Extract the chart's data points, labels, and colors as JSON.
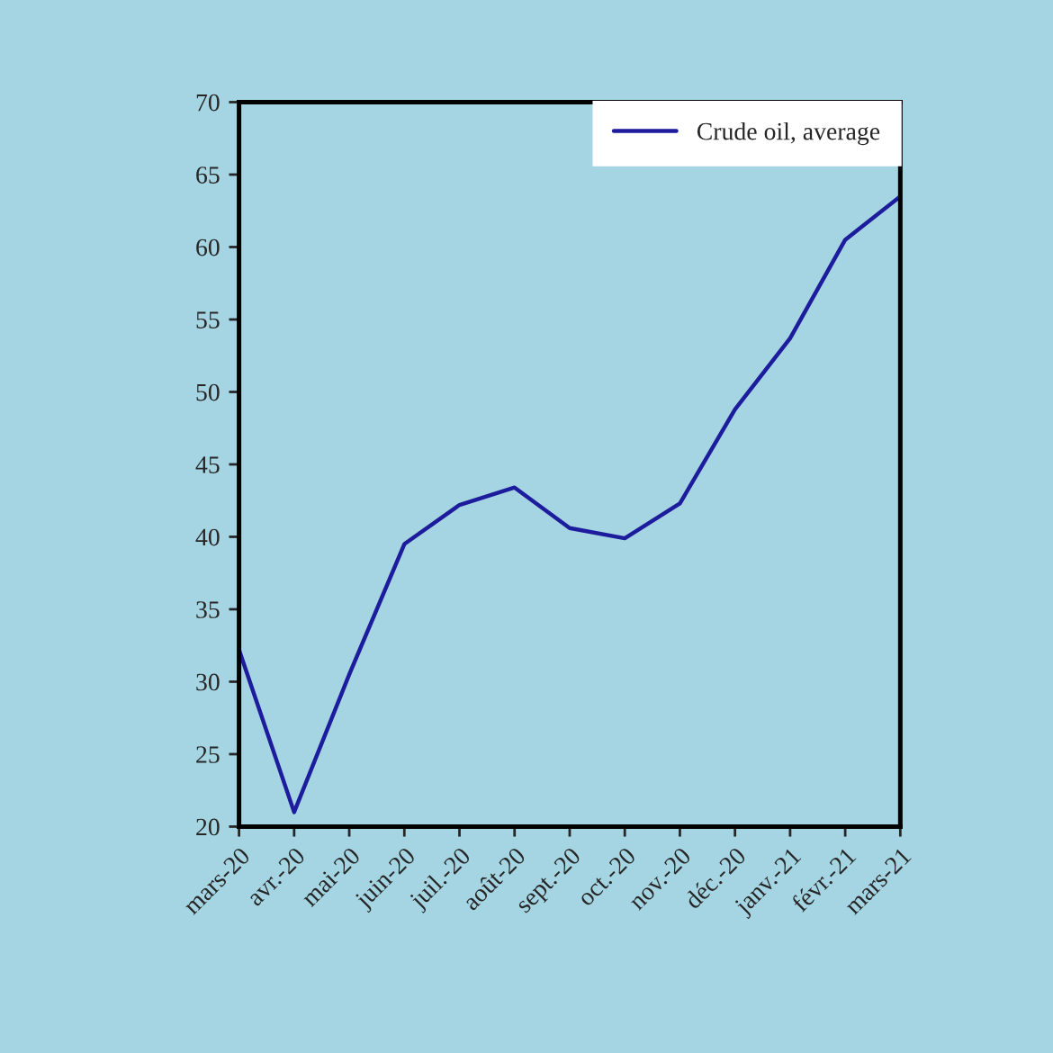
{
  "chart_data": {
    "type": "line",
    "categories": [
      "mars-20",
      "avr.-20",
      "mai-20",
      "juin-20",
      "juil.-20",
      "août-20",
      "sept.-20",
      "oct.-20",
      "nov.-20",
      "déc.-20",
      "janv.-21",
      "févr.-21",
      "mars-21"
    ],
    "series": [
      {
        "name": "Crude oil, average",
        "color": "#1c1c9c",
        "values": [
          32.2,
          21.0,
          30.5,
          39.5,
          42.2,
          43.4,
          40.6,
          39.9,
          42.3,
          48.8,
          53.7,
          60.5,
          63.5
        ]
      }
    ],
    "ylim": [
      20,
      70
    ],
    "yticks": [
      20,
      25,
      30,
      35,
      40,
      45,
      50,
      55,
      60,
      65,
      70
    ],
    "grid": false,
    "legend": "top right",
    "marker": "none",
    "line_style": "solid"
  }
}
